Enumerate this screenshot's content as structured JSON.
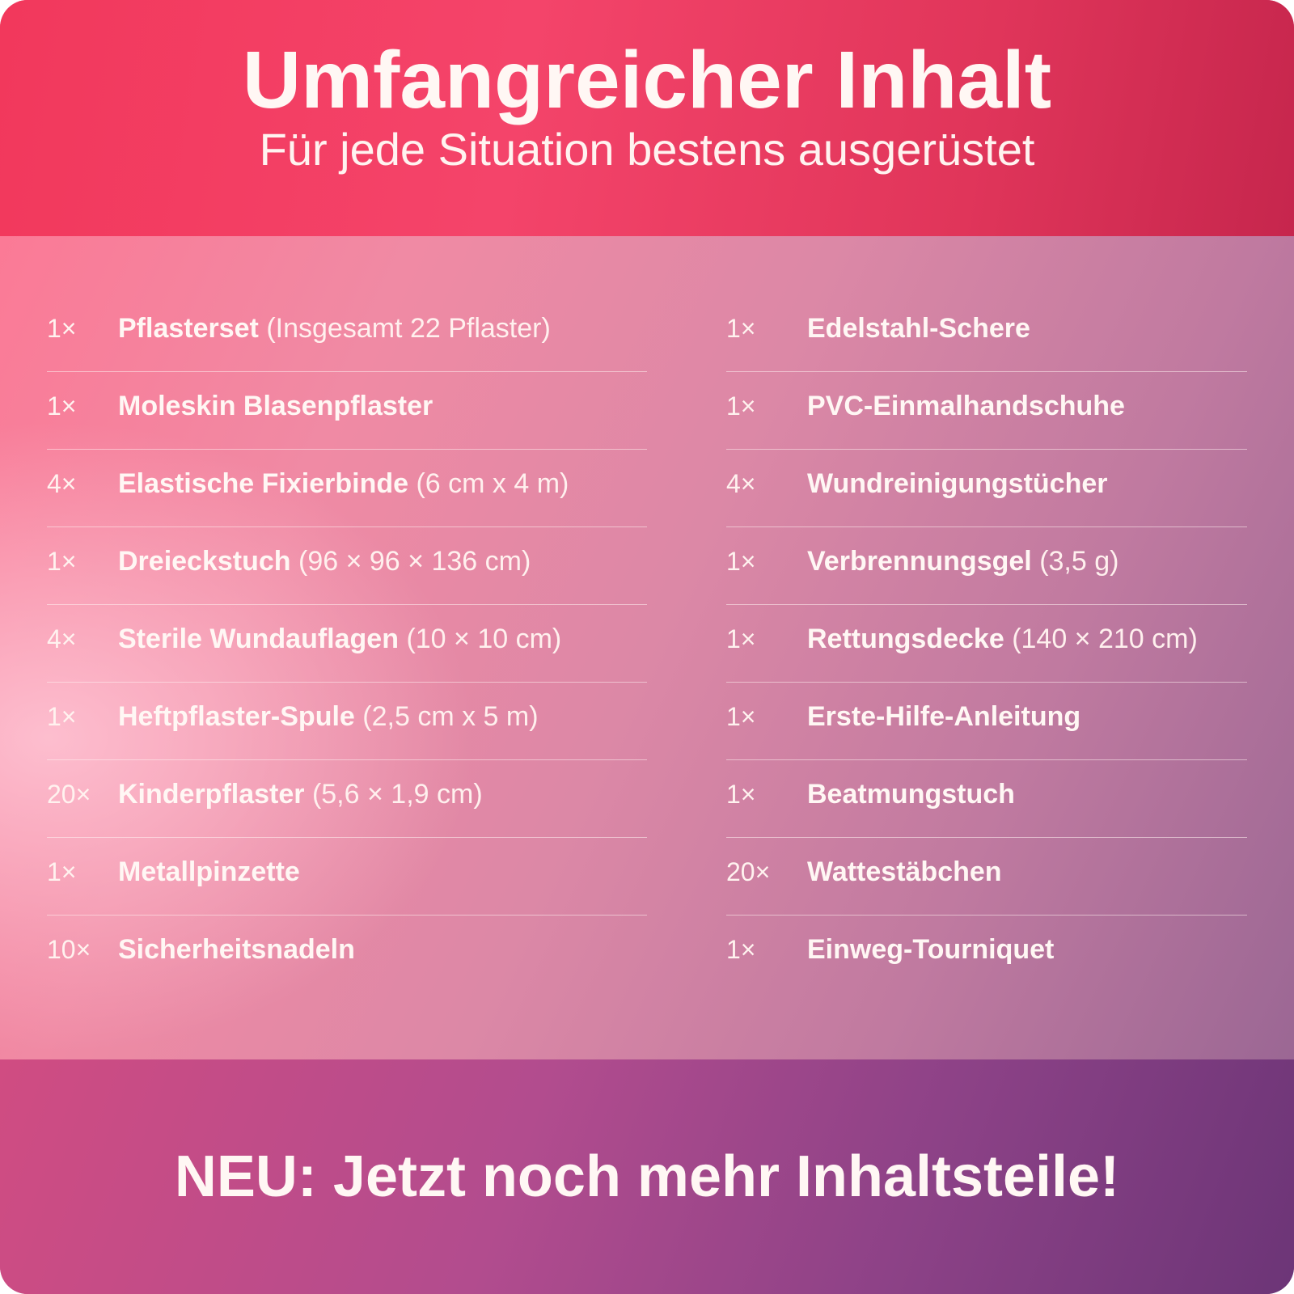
{
  "header": {
    "title": "Umfangreicher Inhalt",
    "subtitle": "Für jede Situation bestens ausgerüstet"
  },
  "contents": {
    "left": [
      {
        "qty": "1×",
        "name": "Pflasterset",
        "detail": "(Insgesamt 22 Pflaster)"
      },
      {
        "qty": "1×",
        "name": "Moleskin Blasenpflaster",
        "detail": ""
      },
      {
        "qty": "4×",
        "name": "Elastische Fixierbinde",
        "detail": "(6 cm x 4 m)"
      },
      {
        "qty": "1×",
        "name": "Dreieckstuch",
        "detail": "(96 × 96 × 136 cm)"
      },
      {
        "qty": "4×",
        "name": "Sterile Wundauflagen",
        "detail": "(10 × 10 cm)"
      },
      {
        "qty": "1×",
        "name": "Heftpflaster-Spule",
        "detail": "(2,5 cm x 5 m)"
      },
      {
        "qty": "20×",
        "name": "Kinderpflaster",
        "detail": "(5,6 × 1,9 cm)"
      },
      {
        "qty": "1×",
        "name": "Metallpinzette",
        "detail": ""
      },
      {
        "qty": "10×",
        "name": "Sicherheitsnadeln",
        "detail": ""
      }
    ],
    "right": [
      {
        "qty": "1×",
        "name": "Edelstahl-Schere",
        "detail": ""
      },
      {
        "qty": "1×",
        "name": "PVC-Einmalhandschuhe",
        "detail": ""
      },
      {
        "qty": "4×",
        "name": "Wundreinigungstücher",
        "detail": ""
      },
      {
        "qty": "1×",
        "name": "Verbrennungsgel",
        "detail": "(3,5 g)"
      },
      {
        "qty": "1×",
        "name": "Rettungsdecke",
        "detail": "(140 × 210 cm)"
      },
      {
        "qty": "1×",
        "name": "Erste-Hilfe-Anleitung",
        "detail": ""
      },
      {
        "qty": "1×",
        "name": "Beatmungstuch",
        "detail": ""
      },
      {
        "qty": "20×",
        "name": "Wattestäbchen",
        "detail": ""
      },
      {
        "qty": "1×",
        "name": "Einweg-Tourniquet",
        "detail": ""
      }
    ]
  },
  "footer": {
    "cta": "NEU: Jetzt noch mehr Inhaltsteile!"
  }
}
